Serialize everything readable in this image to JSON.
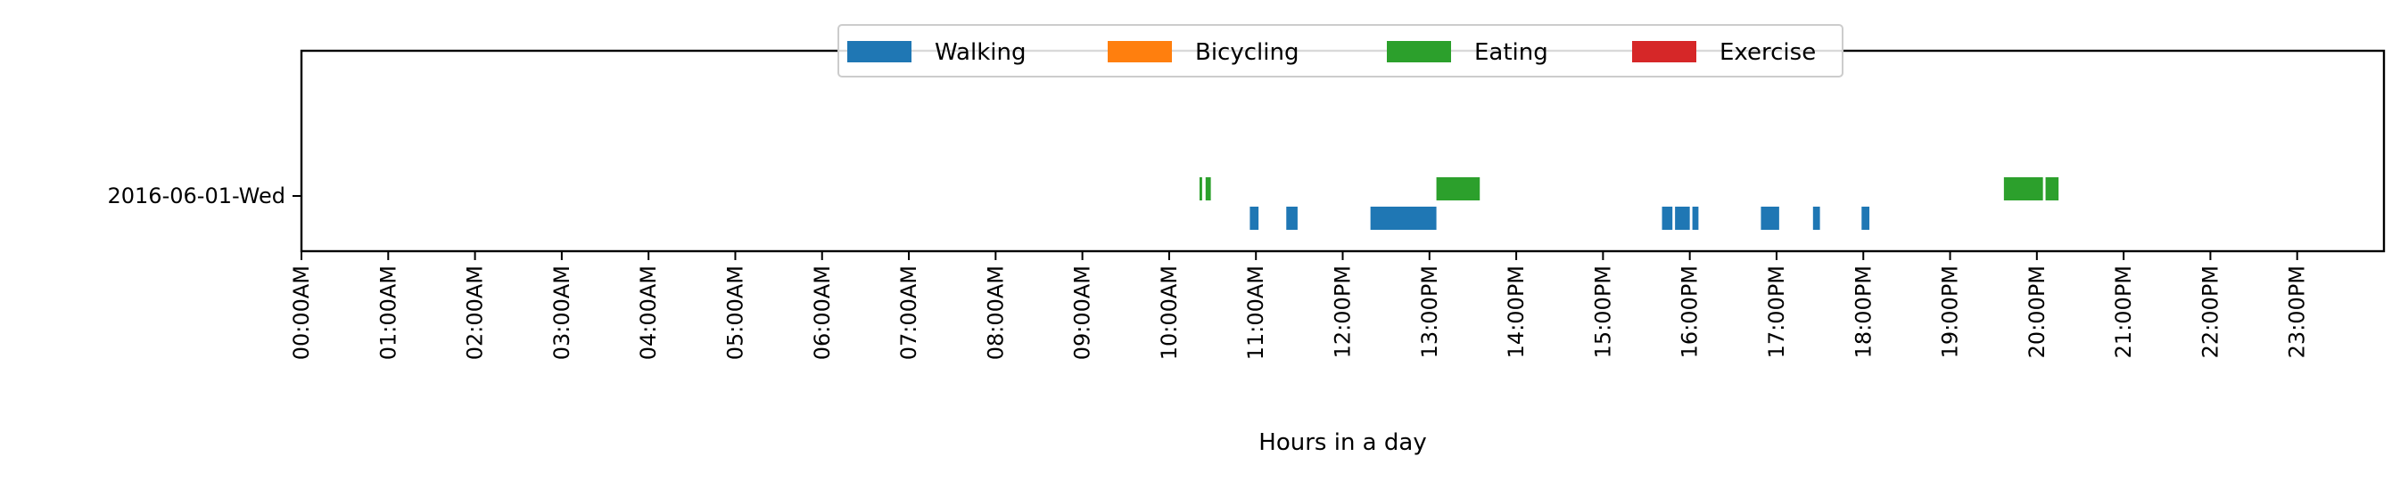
{
  "chart_data": {
    "type": "bar",
    "orientation": "horizontal-timeline",
    "xlabel": "Hours in a day",
    "ylabel": "",
    "xlim": [
      0,
      24
    ],
    "grid": false,
    "legend_position": "top-center",
    "x_tick_labels": [
      "00:00AM",
      "01:00AM",
      "02:00AM",
      "03:00AM",
      "04:00AM",
      "05:00AM",
      "06:00AM",
      "07:00AM",
      "08:00AM",
      "09:00AM",
      "10:00AM",
      "11:00AM",
      "12:00PM",
      "13:00PM",
      "14:00PM",
      "15:00PM",
      "16:00PM",
      "17:00PM",
      "18:00PM",
      "19:00PM",
      "20:00PM",
      "21:00PM",
      "22:00PM",
      "23:00PM"
    ],
    "categories": [
      "2016-06-01-Wed"
    ],
    "series": [
      {
        "name": "Walking",
        "color": "#1f77b4",
        "intervals": [
          [
            10.93,
            11.03
          ],
          [
            11.35,
            11.48
          ],
          [
            12.32,
            13.08
          ],
          [
            15.68,
            15.8
          ],
          [
            15.83,
            16.0
          ],
          [
            16.03,
            16.1
          ],
          [
            16.82,
            17.03
          ],
          [
            17.42,
            17.5
          ],
          [
            17.98,
            18.07
          ]
        ]
      },
      {
        "name": "Bicycling",
        "color": "#ff7f0e",
        "intervals": []
      },
      {
        "name": "Eating",
        "color": "#2ca02c",
        "intervals": [
          [
            10.35,
            10.38
          ],
          [
            10.42,
            10.48
          ],
          [
            13.08,
            13.58
          ],
          [
            19.62,
            20.07
          ],
          [
            20.1,
            20.25
          ]
        ]
      },
      {
        "name": "Exercise",
        "color": "#d62728",
        "intervals": []
      }
    ]
  }
}
